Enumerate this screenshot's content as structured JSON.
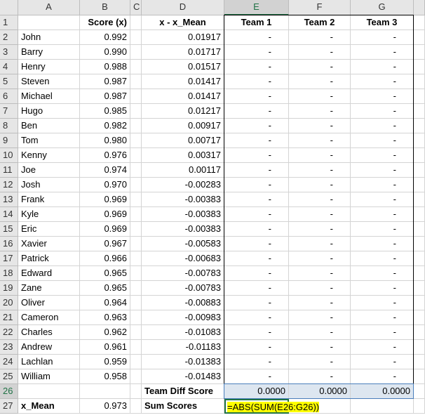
{
  "columns": [
    "A",
    "B",
    "C",
    "D",
    "E",
    "F",
    "G"
  ],
  "rows": [
    {
      "label": "1",
      "cells": [
        null,
        "Score (x)",
        null,
        "x - x_Mean",
        "Team 1",
        "Team 2",
        "Team 3"
      ]
    },
    {
      "label": "2",
      "cells": [
        "John",
        "0.992",
        null,
        "0.01917",
        "-",
        "-",
        "-"
      ]
    },
    {
      "label": "3",
      "cells": [
        "Barry",
        "0.990",
        null,
        "0.01717",
        "-",
        "-",
        "-"
      ]
    },
    {
      "label": "4",
      "cells": [
        "Henry",
        "0.988",
        null,
        "0.01517",
        "-",
        "-",
        "-"
      ]
    },
    {
      "label": "5",
      "cells": [
        "Steven",
        "0.987",
        null,
        "0.01417",
        "-",
        "-",
        "-"
      ]
    },
    {
      "label": "6",
      "cells": [
        "Michael",
        "0.987",
        null,
        "0.01417",
        "-",
        "-",
        "-"
      ]
    },
    {
      "label": "7",
      "cells": [
        "Hugo",
        "0.985",
        null,
        "0.01217",
        "-",
        "-",
        "-"
      ]
    },
    {
      "label": "8",
      "cells": [
        "Ben",
        "0.982",
        null,
        "0.00917",
        "-",
        "-",
        "-"
      ]
    },
    {
      "label": "9",
      "cells": [
        "Tom",
        "0.980",
        null,
        "0.00717",
        "-",
        "-",
        "-"
      ]
    },
    {
      "label": "10",
      "cells": [
        "Kenny",
        "0.976",
        null,
        "0.00317",
        "-",
        "-",
        "-"
      ]
    },
    {
      "label": "11",
      "cells": [
        "Joe",
        "0.974",
        null,
        "0.00117",
        "-",
        "-",
        "-"
      ]
    },
    {
      "label": "12",
      "cells": [
        "Josh",
        "0.970",
        null,
        "-0.00283",
        "-",
        "-",
        "-"
      ]
    },
    {
      "label": "13",
      "cells": [
        "Frank",
        "0.969",
        null,
        "-0.00383",
        "-",
        "-",
        "-"
      ]
    },
    {
      "label": "14",
      "cells": [
        "Kyle",
        "0.969",
        null,
        "-0.00383",
        "-",
        "-",
        "-"
      ]
    },
    {
      "label": "15",
      "cells": [
        "Eric",
        "0.969",
        null,
        "-0.00383",
        "-",
        "-",
        "-"
      ]
    },
    {
      "label": "16",
      "cells": [
        "Xavier",
        "0.967",
        null,
        "-0.00583",
        "-",
        "-",
        "-"
      ]
    },
    {
      "label": "17",
      "cells": [
        "Patrick",
        "0.966",
        null,
        "-0.00683",
        "-",
        "-",
        "-"
      ]
    },
    {
      "label": "18",
      "cells": [
        "Edward",
        "0.965",
        null,
        "-0.00783",
        "-",
        "-",
        "-"
      ]
    },
    {
      "label": "19",
      "cells": [
        "Zane",
        "0.965",
        null,
        "-0.00783",
        "-",
        "-",
        "-"
      ]
    },
    {
      "label": "20",
      "cells": [
        "Oliver",
        "0.964",
        null,
        "-0.00883",
        "-",
        "-",
        "-"
      ]
    },
    {
      "label": "21",
      "cells": [
        "Cameron",
        "0.963",
        null,
        "-0.00983",
        "-",
        "-",
        "-"
      ]
    },
    {
      "label": "22",
      "cells": [
        "Charles",
        "0.962",
        null,
        "-0.01083",
        "-",
        "-",
        "-"
      ]
    },
    {
      "label": "23",
      "cells": [
        "Andrew",
        "0.961",
        null,
        "-0.01183",
        "-",
        "-",
        "-"
      ]
    },
    {
      "label": "24",
      "cells": [
        "Lachlan",
        "0.959",
        null,
        "-0.01383",
        "-",
        "-",
        "-"
      ]
    },
    {
      "label": "25",
      "cells": [
        "William",
        "0.958",
        null,
        "-0.01483",
        "-",
        "-",
        "-"
      ]
    },
    {
      "label": "26",
      "cells": [
        null,
        null,
        null,
        "Team Diff Score",
        "0.0000",
        "0.0000",
        "0.0000"
      ]
    },
    {
      "label": "27",
      "cells": [
        "x_Mean",
        "0.973",
        null,
        "Sum Scores",
        "=ABS(SUM(E26:G26))",
        null,
        null
      ]
    }
  ]
}
